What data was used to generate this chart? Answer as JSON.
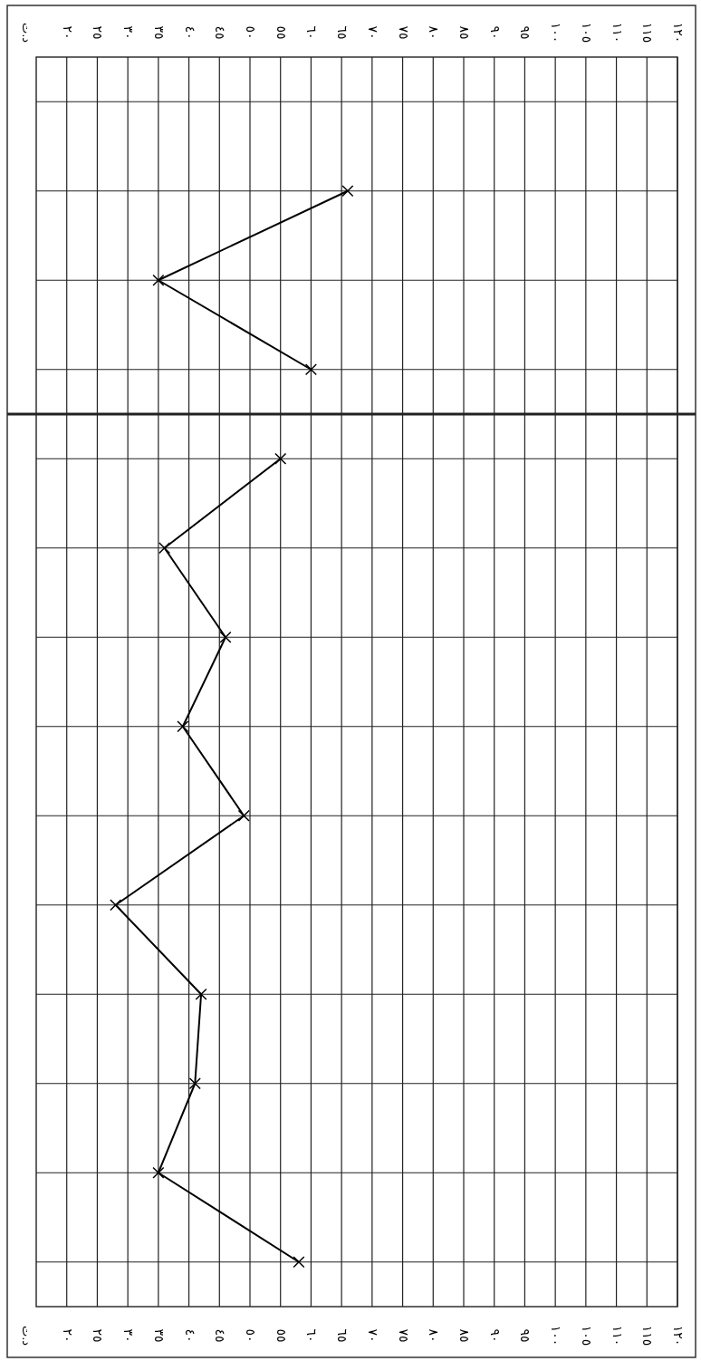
{
  "chart_data": [
    {
      "type": "line",
      "annotations": [
        "د.ت"
      ],
      "orientation": "horizontal",
      "categories": [
        null,
        null,
        null,
        null
      ],
      "values": [
        null,
        66,
        35,
        60
      ],
      "color": "#000000",
      "xlim": [
        15,
        120
      ],
      "xticks": [
        {
          "value": 20,
          "label": "٢٠"
        },
        {
          "value": 25,
          "label": "٢٥"
        },
        {
          "value": 30,
          "label": "٣٠"
        },
        {
          "value": 35,
          "label": "٣٥"
        },
        {
          "value": 40,
          "label": "٤٠"
        },
        {
          "value": 45,
          "label": "٤٥"
        },
        {
          "value": 50,
          "label": "٥٠"
        },
        {
          "value": 55,
          "label": "٥٥"
        },
        {
          "value": 60,
          "label": "٦٠"
        },
        {
          "value": 65,
          "label": "٦٥"
        },
        {
          "value": 70,
          "label": "٧٠"
        },
        {
          "value": 75,
          "label": "٧٥"
        },
        {
          "value": 80,
          "label": "٨٠"
        },
        {
          "value": 85,
          "label": "٨٥"
        },
        {
          "value": 90,
          "label": "٩٠"
        },
        {
          "value": 95,
          "label": "٩٥"
        },
        {
          "value": 100,
          "label": "١٠٠"
        },
        {
          "value": 105,
          "label": "١٠٥"
        },
        {
          "value": 110,
          "label": "١١٠"
        },
        {
          "value": 115,
          "label": "١١٥"
        },
        {
          "value": 120,
          "label": "١٢٠"
        }
      ],
      "grid": true,
      "marker": "cross",
      "line_style": "solid",
      "tick_labels": "x"
    },
    {
      "type": "line",
      "annotations": [
        "د.ت"
      ],
      "orientation": "horizontal",
      "categories": [
        null,
        null,
        null,
        null,
        null,
        null,
        null,
        null,
        null,
        null
      ],
      "values": [
        55,
        36,
        46,
        39,
        49,
        28,
        42,
        41,
        35,
        58
      ],
      "color": "#000000",
      "xlim": [
        15,
        120
      ],
      "xticks": [
        {
          "value": 20,
          "label": "٢٠"
        },
        {
          "value": 25,
          "label": "٢٥"
        },
        {
          "value": 30,
          "label": "٣٠"
        },
        {
          "value": 35,
          "label": "٣٥"
        },
        {
          "value": 40,
          "label": "٤٠"
        },
        {
          "value": 45,
          "label": "٤٥"
        },
        {
          "value": 50,
          "label": "٥٠"
        },
        {
          "value": 55,
          "label": "٥٥"
        },
        {
          "value": 60,
          "label": "٦٠"
        },
        {
          "value": 65,
          "label": "٦٥"
        },
        {
          "value": 70,
          "label": "٧٠"
        },
        {
          "value": 75,
          "label": "٧٥"
        },
        {
          "value": 80,
          "label": "٨٠"
        },
        {
          "value": 85,
          "label": "٨٥"
        },
        {
          "value": 90,
          "label": "٩٠"
        },
        {
          "value": 95,
          "label": "٩٥"
        },
        {
          "value": 100,
          "label": "١٠٠"
        },
        {
          "value": 105,
          "label": "١٠٥"
        },
        {
          "value": 110,
          "label": "١١٠"
        },
        {
          "value": 115,
          "label": "١١٥"
        },
        {
          "value": 120,
          "label": "١٢٠"
        }
      ],
      "grid": true,
      "marker": "cross",
      "line_style": "solid",
      "tick_labels": "x"
    }
  ]
}
